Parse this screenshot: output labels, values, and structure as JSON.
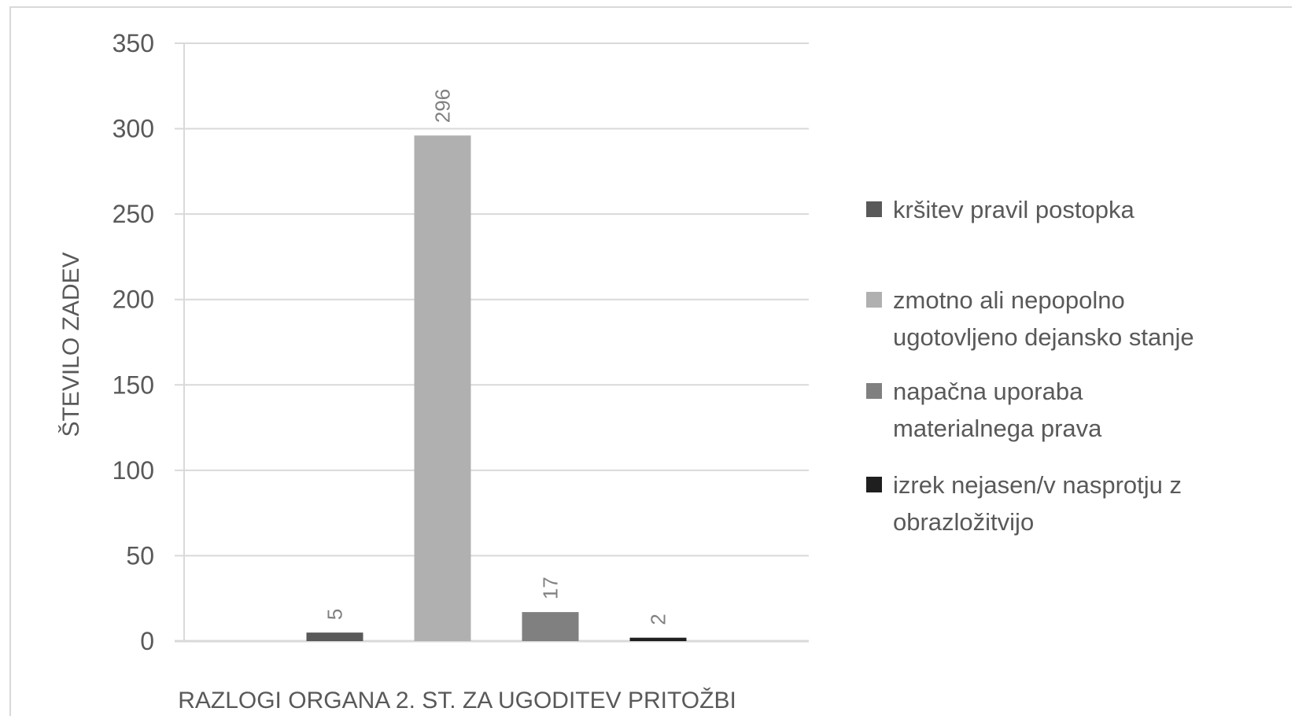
{
  "chart_data": {
    "type": "bar",
    "categories": [
      ""
    ],
    "series": [
      {
        "name": "kršitev pravil postopka",
        "values": [
          5
        ],
        "color": "#595959"
      },
      {
        "name": "zmotno ali nepopolno ugotovljeno dejansko stanje",
        "values": [
          296
        ],
        "color": "#b0b0b0"
      },
      {
        "name": "napačna uporaba materialnega prava",
        "values": [
          17
        ],
        "color": "#808080"
      },
      {
        "name": "izrek nejasen/v nasprotju z obrazložitvijo",
        "values": [
          2
        ],
        "color": "#1f1f1f"
      }
    ],
    "data_labels": [
      "5",
      "296",
      "17",
      "2"
    ],
    "title": "",
    "xlabel": "RAZLOGI ORGANA 2. ST. ZA UGODITEV PRITOŽBI",
    "ylabel": "ŠTEVILO ZADEV",
    "ylim": [
      0,
      350
    ],
    "yticks": [
      0,
      50,
      100,
      150,
      200,
      250,
      300,
      350
    ],
    "grid": true,
    "legend_position": "right",
    "legend_lines": [
      [
        "kršitev pravil postopka"
      ],
      [
        "zmotno ali nepopolno",
        "ugotovljeno dejansko stanje"
      ],
      [
        "napačna uporaba",
        "materialnega prava"
      ],
      [
        "izrek nejasen/v nasprotju z",
        "obrazložitvijo"
      ]
    ],
    "colors": {
      "gridline": "#d9d9d9",
      "text": "#595959"
    }
  }
}
